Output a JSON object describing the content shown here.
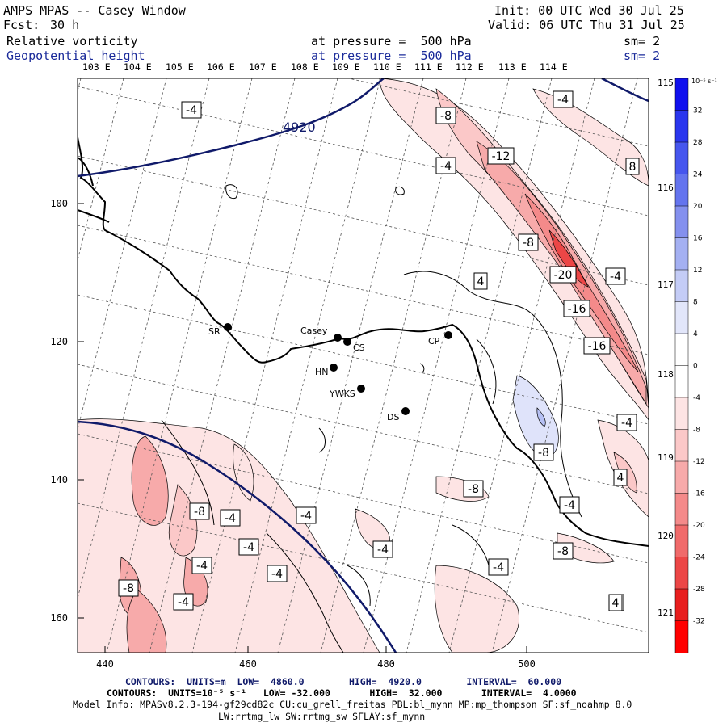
{
  "header": {
    "title": "AMPS MPAS -- Casey Window",
    "fcst_label": "Fcst:",
    "fcst_value": "30 h",
    "init": "Init: 00 UTC Wed 30 Jul 25",
    "valid": "Valid: 06 UTC Thu 31 Jul 25",
    "field1": "Relative vorticity",
    "field2": "Geopotential height",
    "pressure1": "at pressure =  500 hPa",
    "pressure2": "at pressure =  500 hPa",
    "sm1": "sm= 2",
    "sm2": "sm= 2"
  },
  "top_lon_labels": [
    "103 E",
    "104 E",
    "105 E",
    "106 E",
    "107 E",
    "108 E",
    "109 E",
    "110 E",
    "111 E",
    "112 E",
    "113 E",
    "114 E"
  ],
  "right_lon_labels": [
    "115 E",
    "116 E",
    "117 E",
    "118 E",
    "119 E",
    "120 E",
    "121 E"
  ],
  "x_ticks": [
    "440",
    "460",
    "480",
    "500"
  ],
  "y_ticks": [
    "100",
    "120",
    "140",
    "160"
  ],
  "stations": [
    {
      "name": "SR"
    },
    {
      "name": "Casey"
    },
    {
      "name": "CS"
    },
    {
      "name": "HN"
    },
    {
      "name": "YWKS"
    },
    {
      "name": "DS"
    },
    {
      "name": "CP"
    }
  ],
  "height_label": "4920",
  "vorticity_labels": [
    "-4",
    "-8",
    "-12",
    "-20",
    "-16",
    "-16",
    "-4",
    "-8",
    "-4",
    "4",
    "-4",
    "8",
    "-4",
    "-8",
    "4",
    "-4",
    "-8",
    "-8",
    "-4",
    "-4",
    "4",
    "-4",
    "-4",
    "-8",
    "-4",
    "-4",
    "-8",
    "-4",
    "4",
    "-4",
    "4"
  ],
  "colorbar": {
    "unit": "10⁻⁵ s⁻¹",
    "labels": [
      "32",
      "28",
      "24",
      "20",
      "16",
      "12",
      "8",
      "4",
      "0",
      "-4",
      "-8",
      "-12",
      "-16",
      "-20",
      "-24",
      "-28",
      "-32"
    ],
    "colors": [
      "#1010ee",
      "#2a36ee",
      "#4656ee",
      "#6474ee",
      "#8490ee",
      "#a4b0f2",
      "#c4ccf6",
      "#e2e6fa",
      "#ffffff",
      "#ffffff",
      "#fde4e4",
      "#fbc8c8",
      "#f7aaaa",
      "#f48a8a",
      "#f06a6a",
      "#ec4646",
      "#e81e1e",
      "#ff0000"
    ]
  },
  "footer": {
    "contours1": "CONTOURS:  UNITS=m  LOW=  4860.0        HIGH=  4920.0        INTERVAL=  60.000",
    "contours2": "CONTOURS:  UNITS=10⁻⁵ s⁻¹   LOW= -32.000       HIGH=  32.000       INTERVAL=  4.0000",
    "model_info": "Model Info: MPASv8.2.3-194-gf29cd82c CU:cu_grell_freitas PBL:bl_mynn MP:mp_thompson SF:sf_noahmp 8.0",
    "model_info2": "LW:rrtmg_lw SW:rrtmg_sw SFLAY:sf_mynn"
  }
}
